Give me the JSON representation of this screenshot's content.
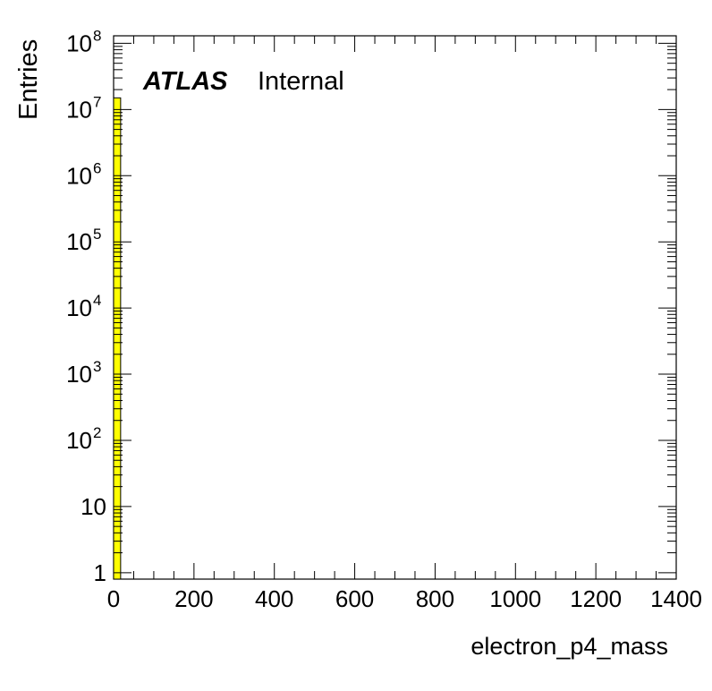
{
  "chart_data": {
    "type": "bar",
    "title": "",
    "xlabel": "electron_p4_mass",
    "ylabel": "Entries",
    "xlim": [
      0,
      1400
    ],
    "ylim": [
      0.8,
      130000000
    ],
    "y_scale": "log",
    "x_ticks": [
      {
        "value": 0,
        "label": "0"
      },
      {
        "value": 200,
        "label": "200"
      },
      {
        "value": 400,
        "label": "400"
      },
      {
        "value": 600,
        "label": "600"
      },
      {
        "value": 800,
        "label": "800"
      },
      {
        "value": 1000,
        "label": "1000"
      },
      {
        "value": 1200,
        "label": "1200"
      },
      {
        "value": 1400,
        "label": "1400"
      }
    ],
    "y_ticks": [
      {
        "value": 1,
        "base": "1",
        "exp": ""
      },
      {
        "value": 10,
        "base": "10",
        "exp": ""
      },
      {
        "value": 100,
        "base": "10",
        "exp": "2"
      },
      {
        "value": 1000,
        "base": "10",
        "exp": "3"
      },
      {
        "value": 10000,
        "base": "10",
        "exp": "4"
      },
      {
        "value": 100000,
        "base": "10",
        "exp": "5"
      },
      {
        "value": 1000000,
        "base": "10",
        "exp": "6"
      },
      {
        "value": 10000000,
        "base": "10",
        "exp": "7"
      },
      {
        "value": 100000000,
        "base": "10",
        "exp": "8"
      }
    ],
    "bins": [
      {
        "x_low": 0,
        "x_high": 17.5,
        "value": 15000000
      }
    ],
    "fill_color": "#ffff00",
    "line_color": "#000000",
    "label_bold": "ATLAS",
    "label_text": "Internal",
    "grid": false,
    "legend": "none"
  }
}
